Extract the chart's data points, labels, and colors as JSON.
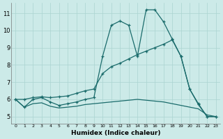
{
  "xlabel": "Humidex (Indice chaleur)",
  "background_color": "#cceae8",
  "grid_color": "#aad4d0",
  "line_color": "#1a6b6b",
  "xlim": [
    -0.5,
    23.5
  ],
  "ylim": [
    4.6,
    11.6
  ],
  "xticks": [
    0,
    1,
    2,
    3,
    4,
    5,
    6,
    7,
    8,
    9,
    10,
    11,
    12,
    13,
    14,
    15,
    16,
    17,
    18,
    19,
    20,
    21,
    22,
    23
  ],
  "yticks": [
    5,
    6,
    7,
    8,
    9,
    10,
    11
  ],
  "series1_x": [
    0,
    1,
    2,
    3,
    4,
    5,
    6,
    7,
    8,
    9,
    10,
    11,
    12,
    13,
    14,
    15,
    16,
    17,
    18,
    19,
    20,
    21,
    22,
    23
  ],
  "series1_y": [
    6.0,
    5.55,
    6.0,
    6.1,
    5.85,
    5.65,
    5.75,
    5.85,
    6.0,
    6.1,
    8.5,
    10.3,
    10.55,
    10.3,
    8.5,
    11.2,
    11.2,
    10.5,
    9.5,
    8.5,
    6.6,
    5.7,
    5.0,
    5.0
  ],
  "series2_x": [
    0,
    1,
    2,
    3,
    4,
    5,
    6,
    7,
    8,
    9,
    10,
    11,
    12,
    13,
    14,
    15,
    16,
    17,
    18,
    19,
    20,
    21,
    22,
    23
  ],
  "series2_y": [
    6.0,
    6.0,
    6.1,
    6.15,
    6.1,
    6.15,
    6.2,
    6.35,
    6.5,
    6.6,
    7.5,
    7.9,
    8.1,
    8.35,
    8.6,
    8.8,
    9.0,
    9.2,
    9.45,
    8.5,
    6.6,
    5.75,
    5.0,
    5.0
  ],
  "series3_x": [
    0,
    1,
    2,
    3,
    4,
    5,
    6,
    7,
    8,
    9,
    10,
    11,
    12,
    13,
    14,
    15,
    16,
    17,
    18,
    19,
    20,
    21,
    22,
    23
  ],
  "series3_y": [
    6.0,
    5.55,
    5.75,
    5.8,
    5.6,
    5.5,
    5.55,
    5.6,
    5.7,
    5.75,
    5.8,
    5.85,
    5.9,
    5.95,
    6.0,
    5.95,
    5.9,
    5.85,
    5.75,
    5.65,
    5.55,
    5.45,
    5.1,
    5.0
  ]
}
